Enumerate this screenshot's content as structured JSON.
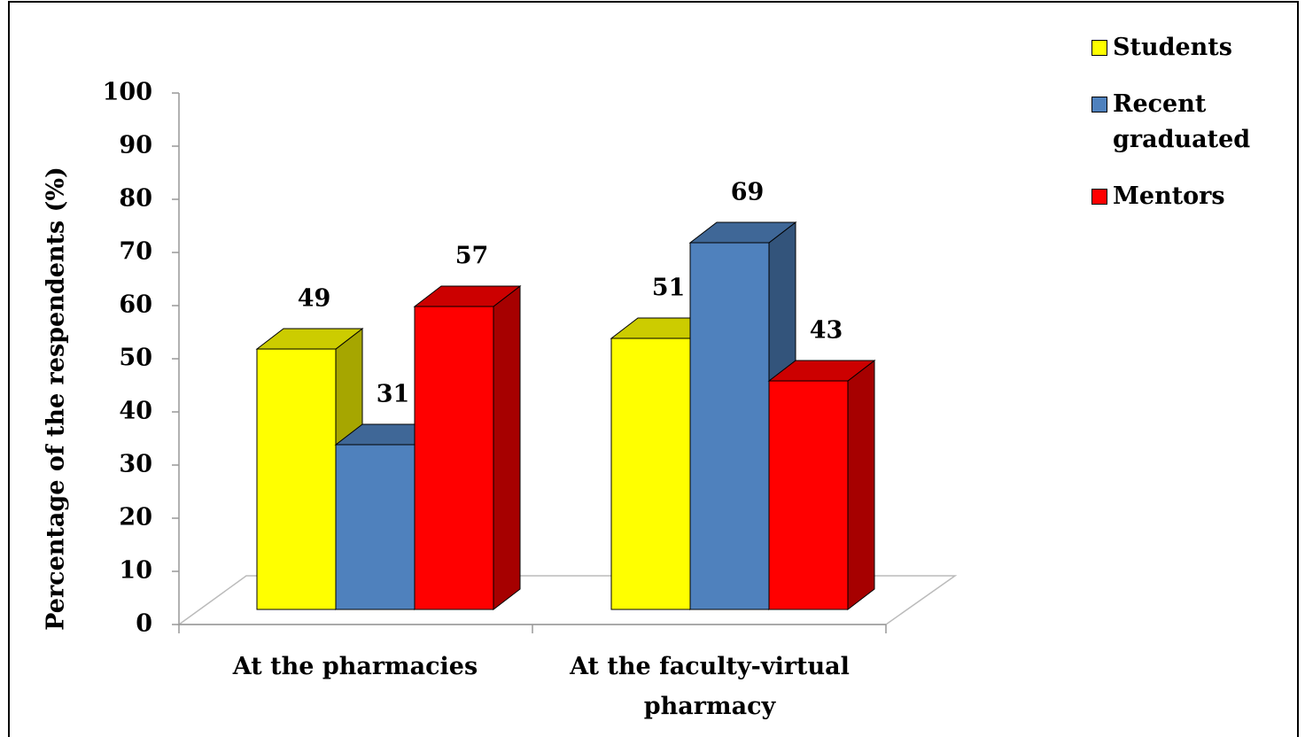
{
  "chart_data": {
    "type": "bar3d",
    "ylabel": "Percentage of the respendents  (%)",
    "categories": [
      "At the pharmacies",
      "At the faculty-virtual pharmacy"
    ],
    "series": [
      {
        "name": "Students",
        "color": "#ffff00",
        "values": [
          49,
          51
        ]
      },
      {
        "name": "Recent graduated",
        "color": "#4f81bd",
        "values": [
          31,
          69
        ]
      },
      {
        "name": "Mentors",
        "color": "#ff0000",
        "values": [
          57,
          43
        ]
      }
    ],
    "ylim": [
      0,
      100
    ],
    "yticks": [
      0,
      10,
      20,
      30,
      40,
      50,
      60,
      70,
      80,
      90,
      100
    ],
    "legend": "top-right"
  }
}
